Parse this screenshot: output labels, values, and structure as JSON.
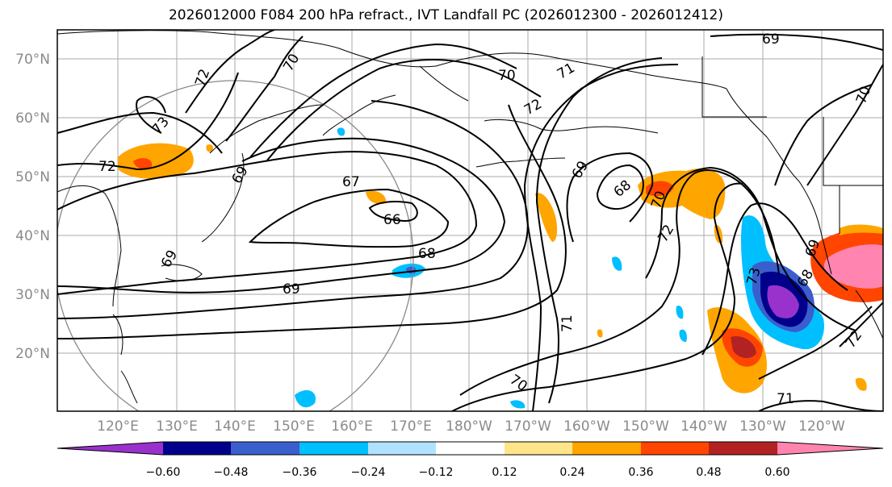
{
  "title": "2026012000 F084 200 hPa refract., IVT Landfall PC (2026012300 - 2026012412)",
  "lat_labels": [
    "70°N",
    "60°N",
    "50°N",
    "40°N",
    "30°N",
    "20°N"
  ],
  "lon_labels": [
    "120°E",
    "130°E",
    "140°E",
    "150°E",
    "160°E",
    "170°E",
    "180°W",
    "170°W",
    "160°W",
    "150°W",
    "140°W",
    "130°W",
    "120°W"
  ],
  "contour_labels": [
    "69",
    "70",
    "72",
    "70",
    "72",
    "71",
    "73",
    "72",
    "69",
    "67",
    "66",
    "68",
    "69",
    "69",
    "68",
    "70",
    "72",
    "73",
    "68",
    "69",
    "71",
    "70",
    "71",
    "72",
    "70",
    "69"
  ],
  "colorbar": {
    "ticks": [
      "−0.60",
      "−0.48",
      "−0.36",
      "−0.24",
      "−0.12",
      "0.12",
      "0.24",
      "0.36",
      "0.48",
      "0.60"
    ],
    "colors": [
      "#9932CC",
      "#00008B",
      "#3A5FCD",
      "#00BFFF",
      "#B0E2FF",
      "#FFFFFF",
      "#FFE58A",
      "#FFA500",
      "#FF4500",
      "#B22222",
      "#FF85B0"
    ]
  }
}
